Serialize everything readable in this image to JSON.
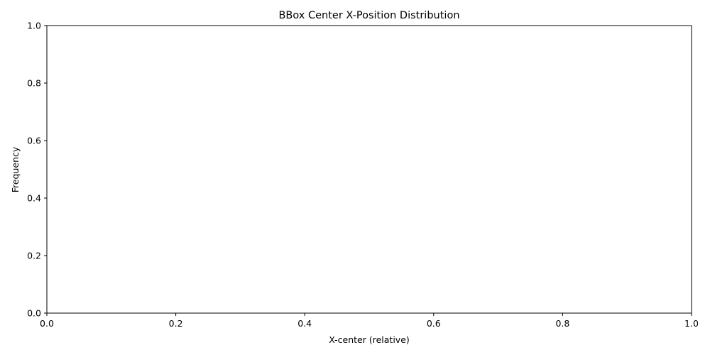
{
  "chart_data": {
    "type": "bar",
    "title": "BBox Center X-Position Distribution",
    "xlabel": "X-center (relative)",
    "ylabel": "Frequency",
    "xlim": [
      0,
      1
    ],
    "ylim": [
      0,
      1
    ],
    "xticks": [
      "0.0",
      "0.2",
      "0.4",
      "0.6",
      "0.8",
      "1.0"
    ],
    "yticks": [
      "0.0",
      "0.2",
      "0.4",
      "0.6",
      "0.8",
      "1.0"
    ],
    "categories": [],
    "values": [],
    "grid": false,
    "legend": "none"
  }
}
